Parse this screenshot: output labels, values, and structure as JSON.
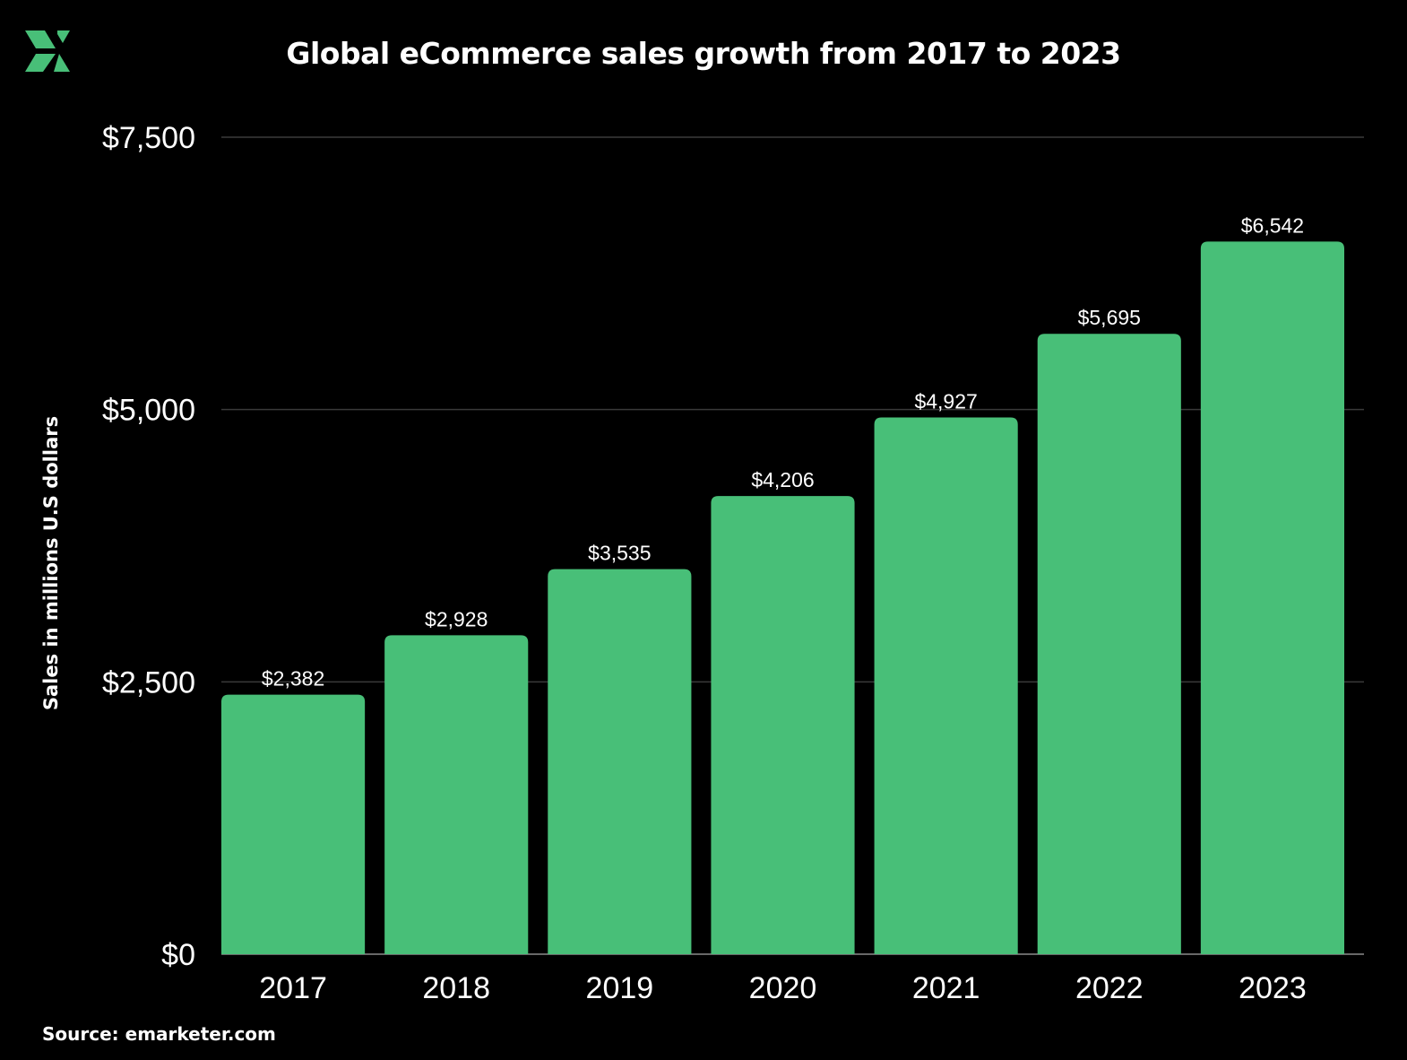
{
  "colors": {
    "background": "#000000",
    "bar": "#48bf78",
    "grid": "#3a3a3a",
    "axis": "#8a8a8a",
    "logo": "#48bf78"
  },
  "logo": {
    "icon": "brand-x-logo-icon"
  },
  "source": "Source: emarketer.com",
  "chart_data": {
    "type": "bar",
    "title": "Global eCommerce sales growth from 2017 to 2023",
    "xlabel": "",
    "ylabel": "Sales in millions U.S dollars",
    "categories": [
      "2017",
      "2018",
      "2019",
      "2020",
      "2021",
      "2022",
      "2023"
    ],
    "values": [
      2382,
      2928,
      3535,
      4206,
      4927,
      5695,
      6542
    ],
    "value_labels": [
      "$2,382",
      "$2,928",
      "$3,535",
      "$4,206",
      "$4,927",
      "$5,695",
      "$6,542"
    ],
    "ylim": [
      0,
      7500
    ],
    "yticks": [
      0,
      2500,
      5000,
      7500
    ],
    "ytick_labels": [
      "$0",
      "$2,500",
      "$5,000",
      "$7,500"
    ],
    "grid": true,
    "legend": "none"
  }
}
